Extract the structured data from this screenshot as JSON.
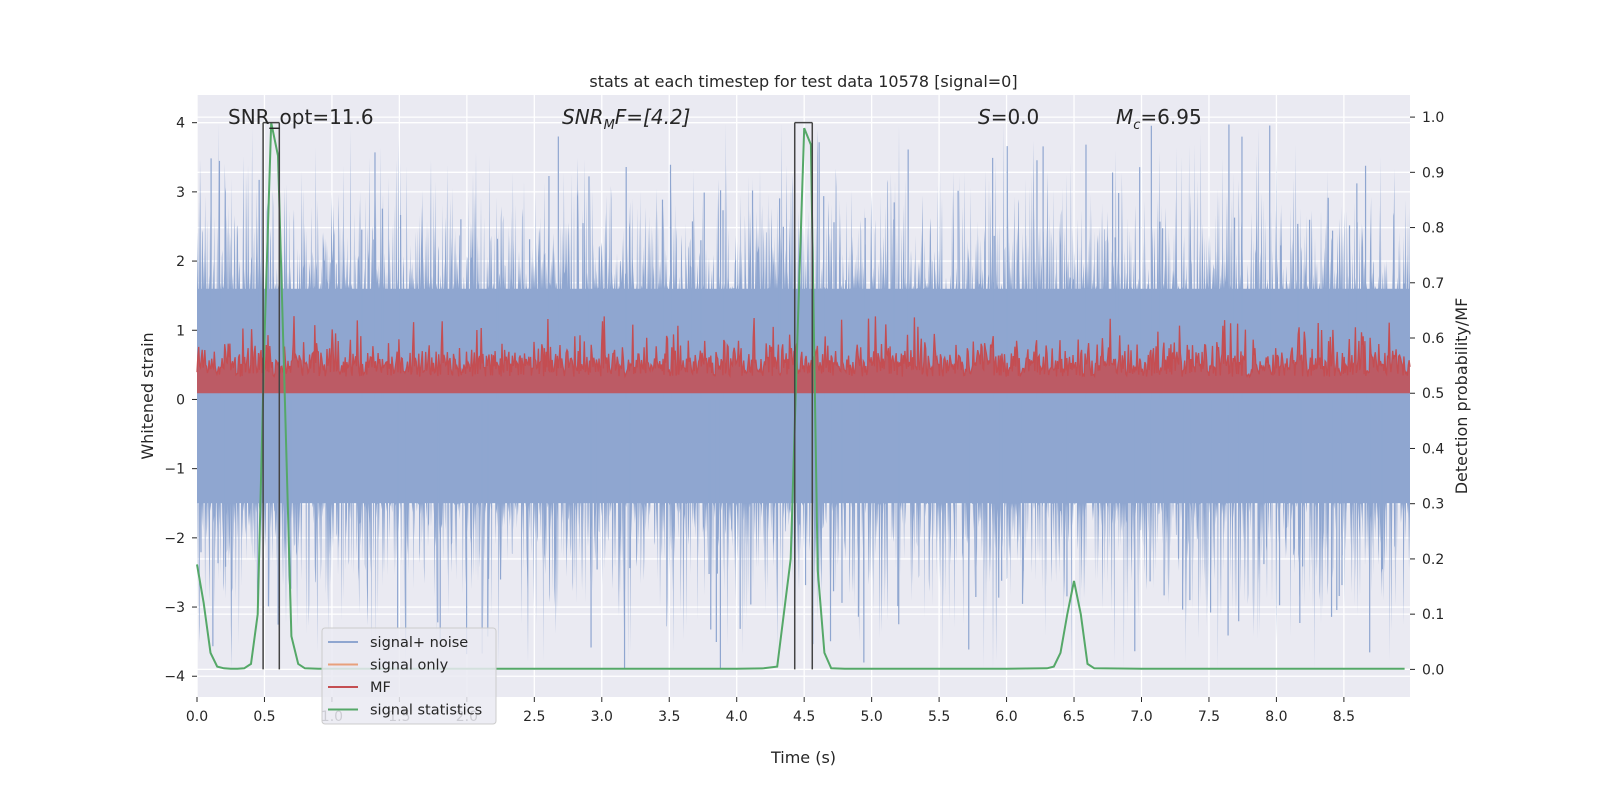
{
  "chart_data": {
    "type": "line",
    "title": "stats at each timestep for test data 10578 [signal=0]",
    "xlabel": "Time (s)",
    "ylabel": "Whitened strain",
    "ylabel_right": "Detection probability/MF",
    "xlim": [
      0.0,
      8.99
    ],
    "ylim": [
      -4.3,
      4.4
    ],
    "ylim_right": [
      -0.05,
      1.04
    ],
    "x_ticks": [
      0.0,
      0.5,
      1.0,
      1.5,
      2.0,
      2.5,
      3.0,
      3.5,
      4.0,
      4.5,
      5.0,
      5.5,
      6.0,
      6.5,
      7.0,
      7.5,
      8.0,
      8.5
    ],
    "x_tick_labels": [
      "0.0",
      "0.5",
      "1.0",
      "1.5",
      "2.0",
      "2.5",
      "3.0",
      "3.5",
      "4.0",
      "4.5",
      "5.0",
      "5.5",
      "6.0",
      "6.5",
      "7.0",
      "7.5",
      "8.0",
      "8.5"
    ],
    "y_ticks": [
      -4,
      -3,
      -2,
      -1,
      0,
      1,
      2,
      3,
      4
    ],
    "y_tick_labels": [
      "−4",
      "−3",
      "−2",
      "−1",
      "0",
      "1",
      "2",
      "3",
      "4"
    ],
    "y_right_ticks": [
      0.0,
      0.1,
      0.2,
      0.3,
      0.4,
      0.5,
      0.6,
      0.7,
      0.8,
      0.9,
      1.0
    ],
    "y_right_tick_labels": [
      "0.0",
      "0.1",
      "0.2",
      "0.3",
      "0.4",
      "0.5",
      "0.6",
      "0.7",
      "0.8",
      "0.9",
      "1.0"
    ],
    "grid": true,
    "annotations": {
      "snr_opt": "SNR_opt=11.6",
      "snr_mf_base": "SNR",
      "snr_mf_sub": "M",
      "snr_mf_rest": "F=[4.2]",
      "s_var": "S",
      "s_rest": "=0.0",
      "mc_var": "M",
      "mc_sub": "c",
      "mc_rest": "=6.95"
    },
    "legend": {
      "position": "lower-left",
      "entries": [
        "signal+ noise",
        "signal only",
        "MF",
        "signal statistics"
      ]
    },
    "colors": {
      "signal_noise": "#8fa6d0",
      "signal_only": "#e8a07c",
      "mf": "#c44e52",
      "signal_statistics": "#55a868",
      "background": "#eaeaf2",
      "marker_lines": "#444444"
    },
    "series": [
      {
        "name": "signal+ noise",
        "axis": "left",
        "description_values": "dense noise between approx -3.9 and 4.0, bulk within about -1.5 to 1.6",
        "envelope_core": [
          -1.5,
          1.6
        ],
        "extreme_range": [
          -3.9,
          4.0
        ]
      },
      {
        "name": "MF",
        "axis": "right",
        "envelope": [
          0.5,
          0.6
        ],
        "peak": 0.64
      },
      {
        "name": "signal statistics",
        "axis": "right",
        "x": [
          0.0,
          0.05,
          0.1,
          0.15,
          0.2,
          0.25,
          0.3,
          0.35,
          0.4,
          0.45,
          0.5,
          0.55,
          0.6,
          0.65,
          0.7,
          0.75,
          0.8,
          0.9,
          1.0,
          1.5,
          2.0,
          2.5,
          3.0,
          3.5,
          4.0,
          4.2,
          4.3,
          4.4,
          4.45,
          4.5,
          4.55,
          4.6,
          4.65,
          4.7,
          4.8,
          5.0,
          5.5,
          6.0,
          6.3,
          6.35,
          6.4,
          6.45,
          6.5,
          6.55,
          6.6,
          6.65,
          7.0,
          7.5,
          8.0,
          8.5,
          8.95
        ],
        "values": [
          0.19,
          0.12,
          0.03,
          0.005,
          0.002,
          0.001,
          0.001,
          0.002,
          0.01,
          0.1,
          0.6,
          0.99,
          0.93,
          0.5,
          0.06,
          0.01,
          0.002,
          0.001,
          0.001,
          0.001,
          0.001,
          0.001,
          0.001,
          0.001,
          0.001,
          0.002,
          0.005,
          0.2,
          0.6,
          0.98,
          0.95,
          0.18,
          0.03,
          0.002,
          0.001,
          0.001,
          0.001,
          0.001,
          0.002,
          0.005,
          0.03,
          0.1,
          0.16,
          0.1,
          0.01,
          0.002,
          0.001,
          0.001,
          0.001,
          0.001,
          0.001
        ]
      }
    ],
    "event_markers": [
      {
        "t_start": 0.49,
        "t_end": 0.61
      },
      {
        "t_start": 4.43,
        "t_end": 4.56
      }
    ]
  }
}
